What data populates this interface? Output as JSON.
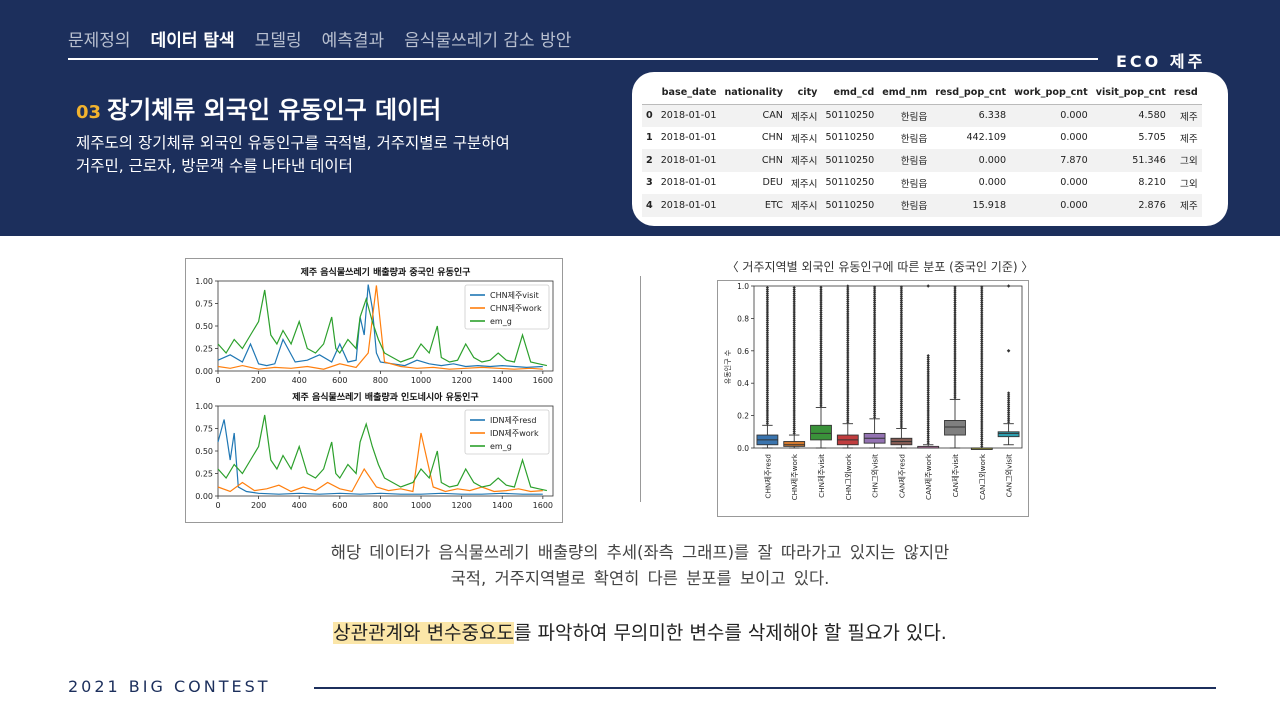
{
  "nav": {
    "items": [
      "문제정의",
      "데이터 탐색",
      "모델링",
      "예측결과",
      "음식물쓰레기 감소 방안"
    ],
    "active": 1
  },
  "brand": "ECO 제주",
  "section": {
    "number": "03",
    "title": "장기체류 외국인 유동인구 데이터",
    "desc_line1": "제주도의 장기체류 외국인 유동인구를 국적별, 거주지별로 구분하여",
    "desc_line2": "거주민, 근로자, 방문객 수를 나타낸 데이터"
  },
  "table": {
    "columns": [
      "",
      "base_date",
      "nationality",
      "city",
      "emd_cd",
      "emd_nm",
      "resd_pop_cnt",
      "work_pop_cnt",
      "visit_pop_cnt",
      "resd"
    ],
    "rows": [
      [
        "0",
        "2018-01-01",
        "CAN",
        "제주시",
        "50110250",
        "한림읍",
        "6.338",
        "0.000",
        "4.580",
        "제주"
      ],
      [
        "1",
        "2018-01-01",
        "CHN",
        "제주시",
        "50110250",
        "한림읍",
        "442.109",
        "0.000",
        "5.705",
        "제주"
      ],
      [
        "2",
        "2018-01-01",
        "CHN",
        "제주시",
        "50110250",
        "한림읍",
        "0.000",
        "7.870",
        "51.346",
        "그외"
      ],
      [
        "3",
        "2018-01-01",
        "DEU",
        "제주시",
        "50110250",
        "한림읍",
        "0.000",
        "0.000",
        "8.210",
        "그외"
      ],
      [
        "4",
        "2018-01-01",
        "ETC",
        "제주시",
        "50110250",
        "한림읍",
        "15.918",
        "0.000",
        "2.876",
        "제주"
      ]
    ]
  },
  "chart_data": [
    {
      "type": "line",
      "title": "제주 음식물쓰레기 배출량과 중국인 유동인구",
      "xlim": [
        0,
        1650
      ],
      "ylim": [
        0,
        1.0
      ],
      "xticks": [
        0,
        200,
        400,
        600,
        800,
        1000,
        1200,
        1400,
        1600
      ],
      "yticks": [
        "0.00",
        "0.25",
        "0.50",
        "0.75",
        "1.00"
      ],
      "legend_position": "top-right",
      "series": [
        {
          "name": "CHN제주visit",
          "color": "#1f77b4",
          "x": [
            0,
            60,
            120,
            160,
            200,
            240,
            280,
            320,
            380,
            440,
            500,
            560,
            600,
            640,
            680,
            700,
            720,
            740,
            760,
            780,
            800,
            860,
            920,
            980,
            1040,
            1100,
            1160,
            1220,
            1280,
            1340,
            1400,
            1460,
            1520,
            1600
          ],
          "y": [
            0.12,
            0.18,
            0.1,
            0.3,
            0.08,
            0.06,
            0.08,
            0.35,
            0.1,
            0.12,
            0.18,
            0.1,
            0.3,
            0.1,
            0.12,
            0.6,
            0.4,
            0.96,
            0.7,
            0.2,
            0.1,
            0.08,
            0.06,
            0.12,
            0.08,
            0.06,
            0.08,
            0.05,
            0.06,
            0.05,
            0.06,
            0.05,
            0.04,
            0.05
          ]
        },
        {
          "name": "CHN제주work",
          "color": "#ff7f0e",
          "x": [
            0,
            60,
            120,
            200,
            280,
            360,
            440,
            520,
            600,
            680,
            740,
            780,
            820,
            900,
            980,
            1060,
            1140,
            1220,
            1300,
            1380,
            1460,
            1540,
            1600
          ],
          "y": [
            0.05,
            0.03,
            0.06,
            0.02,
            0.04,
            0.03,
            0.05,
            0.02,
            0.08,
            0.04,
            0.2,
            0.95,
            0.1,
            0.05,
            0.03,
            0.04,
            0.02,
            0.03,
            0.04,
            0.03,
            0.02,
            0.03,
            0.02
          ]
        },
        {
          "name": "em_g",
          "color": "#2ca02c",
          "x": [
            0,
            40,
            80,
            120,
            160,
            200,
            230,
            260,
            290,
            320,
            360,
            400,
            440,
            480,
            520,
            560,
            580,
            600,
            640,
            680,
            700,
            730,
            760,
            790,
            820,
            860,
            900,
            960,
            1000,
            1040,
            1080,
            1100,
            1140,
            1180,
            1220,
            1260,
            1300,
            1340,
            1380,
            1420,
            1460,
            1500,
            1540,
            1580,
            1620
          ],
          "y": [
            0.3,
            0.2,
            0.35,
            0.25,
            0.4,
            0.55,
            0.9,
            0.4,
            0.3,
            0.45,
            0.3,
            0.55,
            0.25,
            0.2,
            0.3,
            0.6,
            0.25,
            0.2,
            0.35,
            0.25,
            0.6,
            0.8,
            0.55,
            0.35,
            0.2,
            0.15,
            0.1,
            0.15,
            0.3,
            0.2,
            0.5,
            0.15,
            0.1,
            0.12,
            0.3,
            0.15,
            0.1,
            0.12,
            0.2,
            0.12,
            0.1,
            0.4,
            0.1,
            0.08,
            0.06
          ]
        }
      ]
    },
    {
      "type": "line",
      "title": "제주 음식물쓰레기 배출량과 인도네시아 유동인구",
      "xlim": [
        0,
        1650
      ],
      "ylim": [
        0,
        1.0
      ],
      "xticks": [
        0,
        200,
        400,
        600,
        800,
        1000,
        1200,
        1400,
        1600
      ],
      "yticks": [
        "0.00",
        "0.25",
        "0.50",
        "0.75",
        "1.00"
      ],
      "legend_position": "top-right",
      "series": [
        {
          "name": "IDN제주resd",
          "color": "#1f77b4",
          "x": [
            0,
            30,
            60,
            80,
            100,
            140,
            200,
            300,
            400,
            500,
            600,
            700,
            800,
            900,
            1000,
            1100,
            1200,
            1300,
            1400,
            1500,
            1600
          ],
          "y": [
            0.6,
            0.85,
            0.4,
            0.7,
            0.1,
            0.05,
            0.03,
            0.02,
            0.03,
            0.02,
            0.03,
            0.02,
            0.03,
            0.02,
            0.02,
            0.03,
            0.02,
            0.02,
            0.03,
            0.02,
            0.02
          ]
        },
        {
          "name": "IDN제주work",
          "color": "#ff7f0e",
          "x": [
            0,
            60,
            120,
            180,
            240,
            300,
            360,
            420,
            480,
            540,
            600,
            660,
            720,
            780,
            840,
            900,
            960,
            1000,
            1060,
            1120,
            1180,
            1240,
            1300,
            1360,
            1420,
            1480,
            1540,
            1600
          ],
          "y": [
            0.1,
            0.05,
            0.15,
            0.06,
            0.08,
            0.12,
            0.05,
            0.1,
            0.06,
            0.15,
            0.08,
            0.05,
            0.3,
            0.1,
            0.06,
            0.08,
            0.05,
            0.7,
            0.1,
            0.05,
            0.08,
            0.06,
            0.1,
            0.05,
            0.06,
            0.08,
            0.05,
            0.06
          ]
        },
        {
          "name": "em_g",
          "color": "#2ca02c",
          "x": [
            0,
            40,
            80,
            120,
            160,
            200,
            230,
            260,
            290,
            320,
            360,
            400,
            440,
            480,
            520,
            560,
            580,
            600,
            640,
            680,
            700,
            730,
            760,
            790,
            820,
            860,
            900,
            960,
            1000,
            1040,
            1080,
            1100,
            1140,
            1180,
            1220,
            1260,
            1300,
            1340,
            1380,
            1420,
            1460,
            1500,
            1540,
            1580,
            1620
          ],
          "y": [
            0.3,
            0.2,
            0.35,
            0.25,
            0.4,
            0.55,
            0.9,
            0.4,
            0.3,
            0.45,
            0.3,
            0.55,
            0.25,
            0.2,
            0.3,
            0.6,
            0.25,
            0.2,
            0.35,
            0.25,
            0.6,
            0.8,
            0.55,
            0.35,
            0.2,
            0.15,
            0.1,
            0.15,
            0.3,
            0.2,
            0.5,
            0.15,
            0.1,
            0.12,
            0.3,
            0.15,
            0.1,
            0.12,
            0.2,
            0.12,
            0.1,
            0.4,
            0.1,
            0.08,
            0.06
          ]
        }
      ]
    },
    {
      "type": "box",
      "title": "〈 거주지역별 외국인 유동인구에 따른 분포 (중국인 기준) 〉",
      "ylabel": "유동인구 수",
      "ylim": [
        0,
        1.0
      ],
      "yticks": [
        "0.0",
        "0.2",
        "0.4",
        "0.6",
        "0.8",
        "1.0"
      ],
      "categories": [
        "CHN제주resd",
        "CHN제주work",
        "CHN제주visit",
        "CHN그외work",
        "CHN그외visit",
        "CAN제주resd",
        "CAN제주work",
        "CAN제주visit",
        "CAN그외work",
        "CAN그외visit"
      ],
      "colors": [
        "#3a74ae",
        "#d47a2e",
        "#3a923a",
        "#c03d3e",
        "#9372b2",
        "#845b53",
        "#d684bd",
        "#7f7f7f",
        "#a9aa35",
        "#2e9fb0"
      ],
      "q1": [
        0.02,
        0.01,
        0.05,
        0.02,
        0.03,
        0.02,
        0.0,
        0.08,
        0.0,
        0.07
      ],
      "median": [
        0.05,
        0.02,
        0.09,
        0.05,
        0.06,
        0.04,
        0.0,
        0.13,
        0.0,
        0.09
      ],
      "q3": [
        0.08,
        0.04,
        0.14,
        0.08,
        0.09,
        0.06,
        0.01,
        0.17,
        0.0,
        0.1
      ],
      "whisker_low": [
        0.0,
        0.0,
        0.0,
        0.0,
        0.0,
        0.0,
        0.0,
        0.0,
        0.0,
        0.02
      ],
      "whisker_high": [
        0.14,
        0.08,
        0.25,
        0.15,
        0.18,
        0.12,
        0.02,
        0.3,
        0.0,
        0.15
      ],
      "outlier_max": [
        1.0,
        1.0,
        1.0,
        1.0,
        1.0,
        1.0,
        0.58,
        1.0,
        1.0,
        0.35
      ],
      "extra_outliers": [
        [],
        [],
        [],
        [],
        [],
        [],
        [
          1.0
        ],
        [],
        [],
        [
          0.6,
          1.0
        ]
      ]
    }
  ],
  "summary": {
    "line1": "해당 데이터가 음식물쓰레기 배출량의 추세(좌측 그래프)를 잘 따라가고 있지는 않지만",
    "line2": "국적, 거주지역별로 확연히 다른 분포를 보이고 있다."
  },
  "conclusion": {
    "highlight": "상관관계와 변수중요도",
    "rest": "를 파악하여 무의미한 변수를 삭제해야 할 필요가 있다."
  },
  "footer": "2021 BIG CONTEST",
  "colors": {
    "header_bg": "#1c2f5c",
    "accent": "#f2b32e",
    "highlight": "#fbe6a8"
  }
}
